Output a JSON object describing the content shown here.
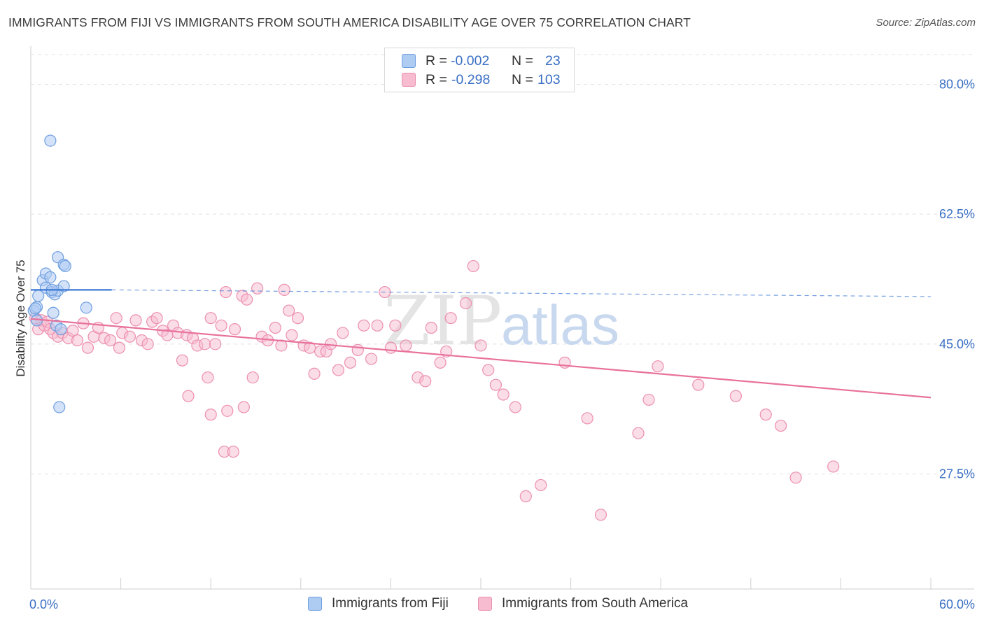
{
  "title": "IMMIGRANTS FROM FIJI VS IMMIGRANTS FROM SOUTH AMERICA DISABILITY AGE OVER 75 CORRELATION CHART",
  "source": "Source: ZipAtlas.com",
  "watermark": {
    "part1": "ZIP",
    "part2": "atlas"
  },
  "legend": {
    "fiji": {
      "label": "Immigrants from Fiji",
      "r_label": "R =",
      "r_value": "-0.002",
      "n_label": "N =",
      "n_value": "23"
    },
    "south_america": {
      "label": "Immigrants from South America",
      "r_label": "R =",
      "r_value": "-0.298",
      "n_label": "N =",
      "n_value": "103"
    }
  },
  "colors": {
    "fiji_fill": "#aecbf2",
    "fiji_stroke": "#6f9fe0",
    "fiji_line": "#3a78d4",
    "sa_fill": "#f7bcd0",
    "sa_stroke": "#ec8fb0",
    "sa_line": "#e8729c",
    "axis_label": "#3a6fc4",
    "grid": "#e2e2e2"
  },
  "chart_data": {
    "type": "scatter",
    "title": "IMMIGRANTS FROM FIJI VS IMMIGRANTS FROM SOUTH AMERICA DISABILITY AGE OVER 75 CORRELATION CHART",
    "xlabel": "",
    "ylabel": "Disability Age Over 75",
    "xlim": [
      0,
      60
    ],
    "ylim": [
      12,
      84
    ],
    "x_tick_labels": [
      "0.0%",
      "60.0%"
    ],
    "y_ticks": [
      27.5,
      45.0,
      62.5,
      80.0
    ],
    "y_tick_labels": [
      "27.5%",
      "45.0%",
      "62.5%",
      "80.0%"
    ],
    "grid": true,
    "series": [
      {
        "name": "Immigrants from Fiji",
        "r": -0.002,
        "n": 23,
        "trend": {
          "solid": [
            [
              0,
              52.3
            ],
            [
              5.4,
              52.3
            ]
          ],
          "dashed": [
            [
              5.4,
              52.3
            ],
            [
              60,
              51.4
            ]
          ]
        },
        "points": [
          [
            0.2,
            49.5
          ],
          [
            0.4,
            50.0
          ],
          [
            0.3,
            49.8
          ],
          [
            0.5,
            51.5
          ],
          [
            0.8,
            53.6
          ],
          [
            1.0,
            54.5
          ],
          [
            1.3,
            54.0
          ],
          [
            1.0,
            52.6
          ],
          [
            1.4,
            52.0
          ],
          [
            1.6,
            51.7
          ],
          [
            1.8,
            52.2
          ],
          [
            1.4,
            52.3
          ],
          [
            2.2,
            52.8
          ],
          [
            1.5,
            49.2
          ],
          [
            1.7,
            47.5
          ],
          [
            1.8,
            56.7
          ],
          [
            2.2,
            55.7
          ],
          [
            2.3,
            55.5
          ],
          [
            1.3,
            72.4
          ],
          [
            3.7,
            49.9
          ],
          [
            1.9,
            36.5
          ],
          [
            0.4,
            48.2
          ],
          [
            2.0,
            47.0
          ]
        ]
      },
      {
        "name": "Immigrants from South America",
        "r": -0.298,
        "n": 103,
        "trend": {
          "solid": [
            [
              0,
              48.4
            ],
            [
              60,
              37.8
            ]
          ]
        },
        "points": [
          [
            0.3,
            48.5
          ],
          [
            0.5,
            47.0
          ],
          [
            0.7,
            48.2
          ],
          [
            0.9,
            47.5
          ],
          [
            1.1,
            48.0
          ],
          [
            1.3,
            47.0
          ],
          [
            1.5,
            46.5
          ],
          [
            1.8,
            46.0
          ],
          [
            2.1,
            46.5
          ],
          [
            2.5,
            45.8
          ],
          [
            2.8,
            46.8
          ],
          [
            3.1,
            45.5
          ],
          [
            3.5,
            47.8
          ],
          [
            3.8,
            44.5
          ],
          [
            4.2,
            46.0
          ],
          [
            4.5,
            47.2
          ],
          [
            4.9,
            45.8
          ],
          [
            5.3,
            45.5
          ],
          [
            5.7,
            48.5
          ],
          [
            5.9,
            44.5
          ],
          [
            6.1,
            46.5
          ],
          [
            6.6,
            46.0
          ],
          [
            7.0,
            48.2
          ],
          [
            7.4,
            45.5
          ],
          [
            7.8,
            45.0
          ],
          [
            8.1,
            48.0
          ],
          [
            8.4,
            48.5
          ],
          [
            8.8,
            46.8
          ],
          [
            9.1,
            46.2
          ],
          [
            9.5,
            47.5
          ],
          [
            9.8,
            46.5
          ],
          [
            10.1,
            42.8
          ],
          [
            10.4,
            46.2
          ],
          [
            10.8,
            45.8
          ],
          [
            11.1,
            44.8
          ],
          [
            11.6,
            45.0
          ],
          [
            12.0,
            48.5
          ],
          [
            12.3,
            45.0
          ],
          [
            12.7,
            47.5
          ],
          [
            13.0,
            52.0
          ],
          [
            13.6,
            47.0
          ],
          [
            14.1,
            51.5
          ],
          [
            14.4,
            51.0
          ],
          [
            14.8,
            40.5
          ],
          [
            15.1,
            52.5
          ],
          [
            15.4,
            46.0
          ],
          [
            15.8,
            45.5
          ],
          [
            16.3,
            47.2
          ],
          [
            16.7,
            44.8
          ],
          [
            16.9,
            52.3
          ],
          [
            17.2,
            49.5
          ],
          [
            17.4,
            46.2
          ],
          [
            17.8,
            48.5
          ],
          [
            18.2,
            44.8
          ],
          [
            18.6,
            44.5
          ],
          [
            18.9,
            41.0
          ],
          [
            19.3,
            44.0
          ],
          [
            19.7,
            44.0
          ],
          [
            20.0,
            45.0
          ],
          [
            20.5,
            41.5
          ],
          [
            20.8,
            46.5
          ],
          [
            21.3,
            42.5
          ],
          [
            21.8,
            44.2
          ],
          [
            22.2,
            47.5
          ],
          [
            22.7,
            43.0
          ],
          [
            23.1,
            47.5
          ],
          [
            23.6,
            52.0
          ],
          [
            24.0,
            44.5
          ],
          [
            24.3,
            47.5
          ],
          [
            25.0,
            44.8
          ],
          [
            25.8,
            40.5
          ],
          [
            26.3,
            40.0
          ],
          [
            26.7,
            47.2
          ],
          [
            27.3,
            42.5
          ],
          [
            27.7,
            44.0
          ],
          [
            28.0,
            48.5
          ],
          [
            29.0,
            50.5
          ],
          [
            29.5,
            55.5
          ],
          [
            30.0,
            44.8
          ],
          [
            30.5,
            41.5
          ],
          [
            31.0,
            39.5
          ],
          [
            31.5,
            38.2
          ],
          [
            32.3,
            36.5
          ],
          [
            33.0,
            24.5
          ],
          [
            14.2,
            36.5
          ],
          [
            13.1,
            36.0
          ],
          [
            10.5,
            38.0
          ],
          [
            11.8,
            40.5
          ],
          [
            12.0,
            35.5
          ],
          [
            12.9,
            30.5
          ],
          [
            13.5,
            30.5
          ],
          [
            34.0,
            26.0
          ],
          [
            35.6,
            42.5
          ],
          [
            37.1,
            35.0
          ],
          [
            38.0,
            22.0
          ],
          [
            40.5,
            33.0
          ],
          [
            41.2,
            37.5
          ],
          [
            41.8,
            42.0
          ],
          [
            44.5,
            39.5
          ],
          [
            47.0,
            38.0
          ],
          [
            49.0,
            35.5
          ],
          [
            50.0,
            34.0
          ],
          [
            51.0,
            27.0
          ],
          [
            53.5,
            28.5
          ]
        ]
      }
    ]
  }
}
